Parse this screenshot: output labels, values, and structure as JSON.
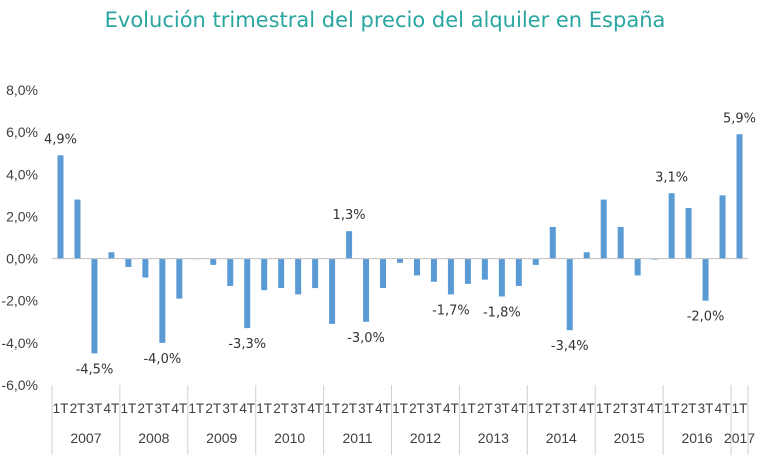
{
  "chart_data": {
    "type": "bar",
    "title": "Evolución trimestral del precio del alquiler en España",
    "xlabel": "",
    "ylabel": "",
    "ylim": [
      -6,
      8
    ],
    "yticks": [
      "8,0%",
      "6,0%",
      "4,0%",
      "2,0%",
      "0,0%",
      "-2,0%",
      "-4,0%",
      "-6,0%"
    ],
    "ytick_values": [
      8,
      6,
      4,
      2,
      0,
      -2,
      -4,
      -6
    ],
    "bar_color": "#5b9bd5",
    "grid": false,
    "years": [
      {
        "label": "2007",
        "quarters": [
          "1T",
          "2T",
          "3T",
          "4T"
        ]
      },
      {
        "label": "2008",
        "quarters": [
          "1T",
          "2T",
          "3T",
          "4T"
        ]
      },
      {
        "label": "2009",
        "quarters": [
          "1T",
          "2T",
          "3T",
          "4T"
        ]
      },
      {
        "label": "2010",
        "quarters": [
          "1T",
          "2T",
          "3T",
          "4T"
        ]
      },
      {
        "label": "2011",
        "quarters": [
          "1T",
          "2T",
          "3T",
          "4T"
        ]
      },
      {
        "label": "2012",
        "quarters": [
          "1T",
          "2T",
          "3T",
          "4T"
        ]
      },
      {
        "label": "2013",
        "quarters": [
          "1T",
          "2T",
          "3T",
          "4T"
        ]
      },
      {
        "label": "2014",
        "quarters": [
          "1T",
          "2T",
          "3T",
          "4T"
        ]
      },
      {
        "label": "2015",
        "quarters": [
          "1T",
          "2T",
          "3T",
          "4T"
        ]
      },
      {
        "label": "2016",
        "quarters": [
          "1T",
          "2T",
          "3T",
          "4T"
        ]
      },
      {
        "label": "2017",
        "quarters": [
          "1T"
        ]
      }
    ],
    "values": [
      4.9,
      2.8,
      -4.5,
      0.3,
      -0.4,
      -0.9,
      -4.0,
      -1.9,
      0.0,
      -0.3,
      -1.3,
      -3.3,
      -1.5,
      -1.4,
      -1.7,
      -1.4,
      -3.1,
      1.3,
      -3.0,
      -1.4,
      -0.2,
      -0.8,
      -1.1,
      -1.7,
      -1.2,
      -1.0,
      -1.8,
      -1.3,
      -0.3,
      1.5,
      -3.4,
      0.3,
      2.8,
      1.5,
      -0.8,
      -0.05,
      3.1,
      2.4,
      -2.0,
      3.0,
      5.9
    ],
    "data_labels": [
      {
        "index": 0,
        "text": "4,9%"
      },
      {
        "index": 2,
        "text": "-4,5%"
      },
      {
        "index": 6,
        "text": "-4,0%"
      },
      {
        "index": 11,
        "text": "-3,3%"
      },
      {
        "index": 17,
        "text": "1,3%"
      },
      {
        "index": 18,
        "text": "-3,0%"
      },
      {
        "index": 23,
        "text": "-1,7%"
      },
      {
        "index": 26,
        "text": "-1,8%"
      },
      {
        "index": 30,
        "text": "-3,4%"
      },
      {
        "index": 36,
        "text": "3,1%"
      },
      {
        "index": 38,
        "text": "-2,0%"
      },
      {
        "index": 40,
        "text": "5,9%"
      }
    ]
  }
}
